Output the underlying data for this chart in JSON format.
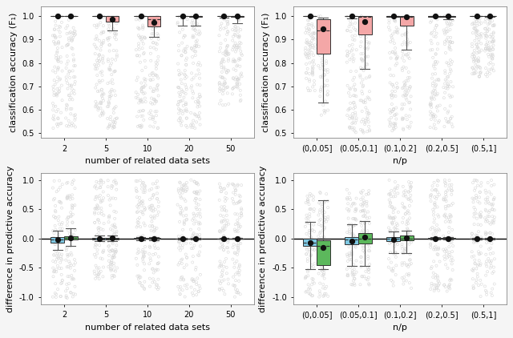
{
  "top_left": {
    "xlabel": "number of related data sets",
    "ylabel": "classification accuracy (F₁)",
    "categories": [
      "2",
      "5",
      "10",
      "20",
      "50"
    ],
    "ylim": [
      0.48,
      1.04
    ],
    "yticks": [
      0.5,
      0.6,
      0.7,
      0.8,
      0.9,
      1.0
    ],
    "box_color": "#f4a7a7",
    "box_data": [
      [
        {
          "q1": 0.999,
          "median": 1.0,
          "q3": 1.0,
          "whislo": 0.999,
          "whishi": 1.0,
          "mean": 1.0,
          "scatter_lo": 0.52,
          "scatter_hi": 1.0
        },
        {
          "q1": 0.999,
          "median": 1.0,
          "q3": 1.0,
          "whislo": 0.999,
          "whishi": 1.0,
          "mean": 1.0,
          "scatter_lo": 0.52,
          "scatter_hi": 1.0
        }
      ],
      [
        {
          "q1": 0.999,
          "median": 1.0,
          "q3": 1.0,
          "whislo": 0.999,
          "whishi": 1.0,
          "mean": 1.0,
          "scatter_lo": 0.57,
          "scatter_hi": 1.0
        },
        {
          "q1": 0.975,
          "median": 1.0,
          "q3": 1.0,
          "whislo": 0.94,
          "whishi": 1.0,
          "mean": 0.987,
          "scatter_lo": 0.52,
          "scatter_hi": 1.0
        }
      ],
      [
        {
          "q1": 0.999,
          "median": 1.0,
          "q3": 1.0,
          "whislo": 0.999,
          "whishi": 1.0,
          "mean": 1.0,
          "scatter_lo": 0.52,
          "scatter_hi": 1.0
        },
        {
          "q1": 0.955,
          "median": 0.985,
          "q3": 1.0,
          "whislo": 0.912,
          "whishi": 1.0,
          "mean": 0.972,
          "scatter_lo": 0.52,
          "scatter_hi": 1.0
        }
      ],
      [
        {
          "q1": 0.999,
          "median": 1.0,
          "q3": 1.0,
          "whislo": 0.96,
          "whishi": 1.0,
          "mean": 1.0,
          "scatter_lo": 0.52,
          "scatter_hi": 1.0
        },
        {
          "q1": 0.997,
          "median": 1.0,
          "q3": 1.0,
          "whislo": 0.96,
          "whishi": 1.0,
          "mean": 0.999,
          "scatter_lo": 0.52,
          "scatter_hi": 1.0
        }
      ],
      [
        {
          "q1": 0.999,
          "median": 1.0,
          "q3": 1.0,
          "whislo": 0.992,
          "whishi": 1.0,
          "mean": 1.0,
          "scatter_lo": 0.62,
          "scatter_hi": 1.0
        },
        {
          "q1": 0.997,
          "median": 1.0,
          "q3": 1.0,
          "whislo": 0.97,
          "whishi": 1.0,
          "mean": 0.999,
          "scatter_lo": 0.62,
          "scatter_hi": 1.0
        }
      ]
    ]
  },
  "top_right": {
    "xlabel": "n/p",
    "ylabel": "classification accuracy (F₁)",
    "categories": [
      "(0,0.05]",
      "(0.05,0.1]",
      "(0.1,0.2]",
      "(0.2,0.5]",
      "(0.5,1]"
    ],
    "ylim": [
      0.48,
      1.04
    ],
    "yticks": [
      0.5,
      0.6,
      0.7,
      0.8,
      0.9,
      1.0
    ],
    "box_color": "#f4a7a7",
    "box_data": [
      [
        {
          "q1": 0.999,
          "median": 1.0,
          "q3": 1.0,
          "whislo": 0.999,
          "whishi": 1.0,
          "mean": 1.0,
          "scatter_lo": 0.67,
          "scatter_hi": 1.0
        },
        {
          "q1": 0.84,
          "median": 0.94,
          "q3": 0.985,
          "whislo": 0.63,
          "whishi": 0.995,
          "mean": 0.945,
          "scatter_lo": 0.57,
          "scatter_hi": 1.0
        }
      ],
      [
        {
          "q1": 0.999,
          "median": 1.0,
          "q3": 1.0,
          "whislo": 0.99,
          "whishi": 1.0,
          "mean": 1.0,
          "scatter_lo": 0.5,
          "scatter_hi": 1.0
        },
        {
          "q1": 0.92,
          "median": 0.998,
          "q3": 1.0,
          "whislo": 0.775,
          "whishi": 1.0,
          "mean": 0.975,
          "scatter_lo": 0.5,
          "scatter_hi": 1.0
        }
      ],
      [
        {
          "q1": 0.998,
          "median": 1.0,
          "q3": 1.0,
          "whislo": 0.998,
          "whishi": 1.0,
          "mean": 1.0,
          "scatter_lo": 0.51,
          "scatter_hi": 1.0
        },
        {
          "q1": 0.96,
          "median": 0.998,
          "q3": 1.0,
          "whislo": 0.855,
          "whishi": 1.0,
          "mean": 0.997,
          "scatter_lo": 0.51,
          "scatter_hi": 1.0
        }
      ],
      [
        {
          "q1": 0.998,
          "median": 1.0,
          "q3": 1.0,
          "whislo": 0.998,
          "whishi": 1.0,
          "mean": 1.0,
          "scatter_lo": 0.52,
          "scatter_hi": 1.0
        },
        {
          "q1": 0.998,
          "median": 1.0,
          "q3": 1.0,
          "whislo": 0.988,
          "whishi": 1.0,
          "mean": 1.0,
          "scatter_lo": 0.52,
          "scatter_hi": 1.0
        }
      ],
      [
        {
          "q1": 0.999,
          "median": 1.0,
          "q3": 1.0,
          "whislo": 0.999,
          "whishi": 1.0,
          "mean": 1.0,
          "scatter_lo": 0.74,
          "scatter_hi": 1.0
        },
        {
          "q1": 0.999,
          "median": 1.0,
          "q3": 1.0,
          "whislo": 0.997,
          "whishi": 1.0,
          "mean": 1.0,
          "scatter_lo": 0.74,
          "scatter_hi": 1.0
        }
      ]
    ]
  },
  "bot_left": {
    "xlabel": "number of related data sets",
    "ylabel": "difference in predictive accuracy",
    "categories": [
      "2",
      "5",
      "10",
      "20",
      "50"
    ],
    "ylim": [
      -1.12,
      1.12
    ],
    "yticks": [
      -1.0,
      -0.5,
      0.0,
      0.5,
      1.0
    ],
    "hline": 0.0,
    "box_data": [
      [
        {
          "q1": -0.07,
          "median": -0.01,
          "q3": 0.02,
          "whislo": -0.2,
          "whishi": 0.14,
          "mean": -0.01,
          "color": "#7ec8e3",
          "scatter_lo": -1.05,
          "scatter_hi": 1.0
        },
        {
          "q1": -0.01,
          "median": 0.01,
          "q3": 0.04,
          "whislo": -0.12,
          "whishi": 0.17,
          "mean": 0.015,
          "color": "#5cb85c",
          "scatter_lo": -1.05,
          "scatter_hi": 1.0
        }
      ],
      [
        {
          "q1": -0.01,
          "median": 0.0,
          "q3": 0.01,
          "whislo": -0.05,
          "whishi": 0.05,
          "mean": 0.0,
          "color": "#7ec8e3",
          "scatter_lo": -0.7,
          "scatter_hi": 1.0
        },
        {
          "q1": -0.01,
          "median": 0.0,
          "q3": 0.01,
          "whislo": -0.05,
          "whishi": 0.05,
          "mean": 0.005,
          "color": "#5cb85c",
          "scatter_lo": -0.7,
          "scatter_hi": 1.0
        }
      ],
      [
        {
          "q1": -0.005,
          "median": 0.0,
          "q3": 0.005,
          "whislo": -0.025,
          "whishi": 0.025,
          "mean": 0.0,
          "color": "#7ec8e3",
          "scatter_lo": -0.9,
          "scatter_hi": 1.0
        },
        {
          "q1": -0.005,
          "median": 0.0,
          "q3": 0.005,
          "whislo": -0.025,
          "whishi": 0.025,
          "mean": 0.0,
          "color": "#5cb85c",
          "scatter_lo": -0.9,
          "scatter_hi": 1.0
        }
      ],
      [
        {
          "q1": -0.003,
          "median": 0.0,
          "q3": 0.003,
          "whislo": -0.01,
          "whishi": 0.01,
          "mean": 0.0,
          "color": "#7ec8e3",
          "scatter_lo": -1.0,
          "scatter_hi": 1.0
        },
        {
          "q1": -0.003,
          "median": 0.0,
          "q3": 0.003,
          "whislo": -0.01,
          "whishi": 0.01,
          "mean": 0.0,
          "color": "#5cb85c",
          "scatter_lo": -1.0,
          "scatter_hi": 1.0
        }
      ],
      [
        {
          "q1": -0.002,
          "median": 0.0,
          "q3": 0.002,
          "whislo": -0.008,
          "whishi": 0.008,
          "mean": 0.0,
          "color": "#7ec8e3",
          "scatter_lo": -1.0,
          "scatter_hi": 1.0
        },
        {
          "q1": -0.002,
          "median": 0.0,
          "q3": 0.002,
          "whislo": -0.008,
          "whishi": 0.008,
          "mean": 0.0,
          "color": "#5cb85c",
          "scatter_lo": -1.0,
          "scatter_hi": 1.0
        }
      ]
    ]
  },
  "bot_right": {
    "xlabel": "n/p",
    "ylabel": "difference in predictive accuracy",
    "categories": [
      "(0,0.05]",
      "(0.05,0.1]",
      "(0.1,0.2]",
      "(0.2,0.5]",
      "(0.5,1]"
    ],
    "ylim": [
      -1.12,
      1.12
    ],
    "yticks": [
      -1.0,
      -0.5,
      0.0,
      0.5,
      1.0
    ],
    "hline": 0.0,
    "box_data": [
      [
        {
          "q1": -0.12,
          "median": -0.07,
          "q3": 0.0,
          "whislo": -0.52,
          "whishi": 0.28,
          "mean": -0.07,
          "color": "#7ec8e3",
          "scatter_lo": -1.0,
          "scatter_hi": 0.8
        },
        {
          "q1": -0.45,
          "median": -0.13,
          "q3": -0.03,
          "whislo": -0.52,
          "whishi": 0.65,
          "mean": -0.15,
          "color": "#5cb85c",
          "scatter_lo": -1.0,
          "scatter_hi": 0.8
        }
      ],
      [
        {
          "q1": -0.1,
          "median": -0.02,
          "q3": 0.02,
          "whislo": -0.47,
          "whishi": 0.25,
          "mean": -0.04,
          "color": "#7ec8e3",
          "scatter_lo": -0.8,
          "scatter_hi": 0.85
        },
        {
          "q1": -0.08,
          "median": 0.0,
          "q3": 0.1,
          "whislo": -0.47,
          "whishi": 0.3,
          "mean": 0.02,
          "color": "#5cb85c",
          "scatter_lo": -0.8,
          "scatter_hi": 0.85
        }
      ],
      [
        {
          "q1": -0.05,
          "median": 0.0,
          "q3": 0.02,
          "whislo": -0.25,
          "whishi": 0.12,
          "mean": -0.01,
          "color": "#7ec8e3",
          "scatter_lo": -0.9,
          "scatter_hi": 1.0
        },
        {
          "q1": -0.03,
          "median": 0.0,
          "q3": 0.05,
          "whislo": -0.25,
          "whishi": 0.14,
          "mean": 0.01,
          "color": "#5cb85c",
          "scatter_lo": -0.9,
          "scatter_hi": 1.0
        }
      ],
      [
        {
          "q1": -0.005,
          "median": 0.0,
          "q3": 0.005,
          "whislo": -0.02,
          "whishi": 0.02,
          "mean": 0.0,
          "color": "#7ec8e3",
          "scatter_lo": -0.9,
          "scatter_hi": 1.0
        },
        {
          "q1": -0.005,
          "median": 0.0,
          "q3": 0.005,
          "whislo": -0.02,
          "whishi": 0.02,
          "mean": 0.0,
          "color": "#5cb85c",
          "scatter_lo": -0.9,
          "scatter_hi": 1.0
        }
      ],
      [
        {
          "q1": -0.002,
          "median": 0.0,
          "q3": 0.002,
          "whislo": -0.01,
          "whishi": 0.01,
          "mean": 0.0,
          "color": "#7ec8e3",
          "scatter_lo": -1.0,
          "scatter_hi": 1.0
        },
        {
          "q1": -0.002,
          "median": 0.0,
          "q3": 0.002,
          "whislo": -0.01,
          "whishi": 0.01,
          "mean": 0.0,
          "color": "#5cb85c",
          "scatter_lo": -1.0,
          "scatter_hi": 1.0
        }
      ]
    ]
  },
  "scatter_color": "#d8d8d8",
  "dot_color": "#111111",
  "scatter_n": 80,
  "scatter_marker_size": 5
}
